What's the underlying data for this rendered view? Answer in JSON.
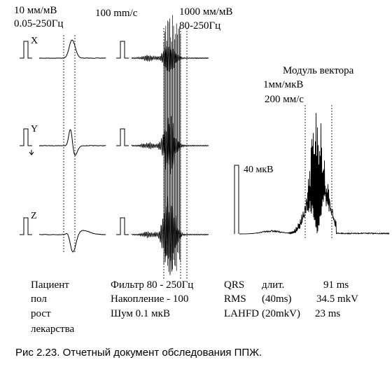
{
  "left_panel": {
    "scale_line1": "10 мм/мВ",
    "scale_line2": "0.05-250Гц",
    "leads": [
      "X",
      "Y",
      "Z"
    ]
  },
  "middle_panel": {
    "speed": "100 mm/c",
    "hf_scale_line1": "1000 мм/мВ",
    "hf_scale_line2": "80-250Гц"
  },
  "right_panel": {
    "title": "Модуль вектора",
    "scale_line1": "1мм/мкВ",
    "scale_line2": "200 мм/с",
    "calibration": "40 мкВ"
  },
  "patient_info": [
    "Пациент",
    "пол",
    "рост",
    "лекарства"
  ],
  "filter_info": [
    "Фильтр 80 - 250Гц",
    "Накопление - 100",
    "Шум 0.1 мкВ"
  ],
  "results": [
    {
      "label": "QRS",
      "param": "длит.",
      "value": "91 ms"
    },
    {
      "label": "RMS",
      "param": "(40ms)",
      "value": "34.5 mkV"
    },
    {
      "label": "LAHFD",
      "param": "(20mkV)",
      "value": "23 ms"
    }
  ],
  "caption": "Рис 2.23. Отчетный документ обследования ППЖ."
}
